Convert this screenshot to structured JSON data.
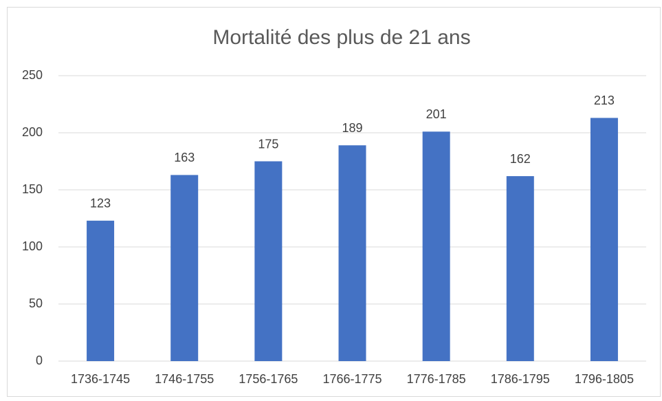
{
  "chart_data": {
    "type": "bar",
    "title": "Mortalité des plus de 21 ans",
    "categories": [
      "1736-1745",
      "1746-1755",
      "1756-1765",
      "1766-1775",
      "1776-1785",
      "1786-1795",
      "1796-1805"
    ],
    "values": [
      123,
      163,
      175,
      189,
      201,
      162,
      213
    ],
    "color": "#4472c4",
    "ylim": [
      0,
      250
    ],
    "yticks": [
      0,
      50,
      100,
      150,
      200,
      250
    ],
    "grid": true,
    "data_labels": true
  }
}
